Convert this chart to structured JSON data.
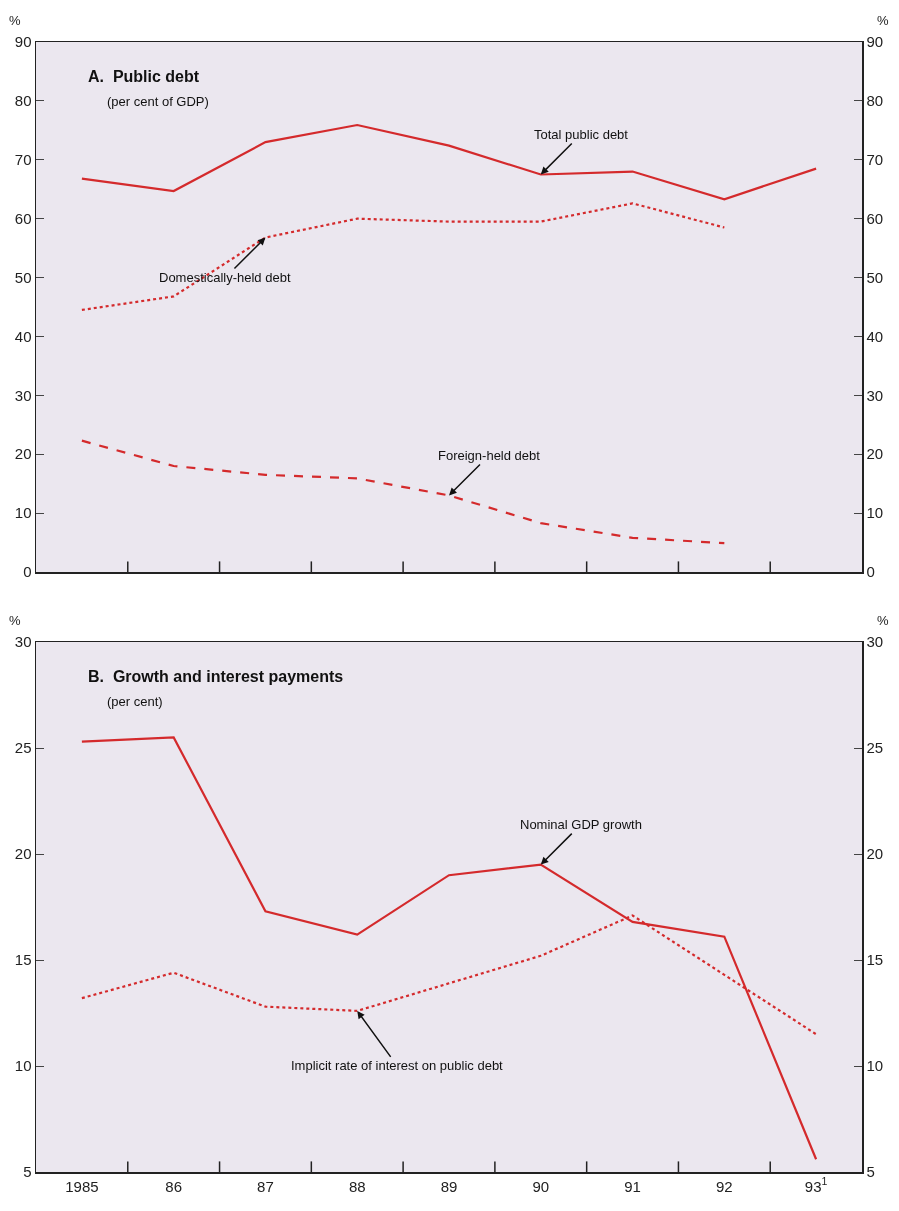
{
  "chart_data": [
    {
      "type": "line",
      "title": "A.  Public debt",
      "subtitle": "(per cent of GDP)",
      "ylabel": "%",
      "y2label": "%",
      "categories": [
        null,
        null,
        null,
        null,
        null,
        null,
        null,
        null,
        null
      ],
      "series": [
        {
          "name": "Total public debt",
          "color": "#d42a2c",
          "line_style": "solid",
          "values": [
            66.8,
            64.7,
            73,
            75.9,
            72.4,
            67.5,
            68,
            63.3,
            68.5
          ]
        },
        {
          "name": "Domestically-held debt",
          "color": "#d42a2c",
          "line_style": "dotted",
          "values": [
            44.5,
            46.8,
            56.8,
            60,
            59.5,
            59.5,
            62.6,
            58.5,
            null
          ]
        },
        {
          "name": "Foreign-held debt",
          "color": "#d42a2c",
          "line_style": "dashed",
          "values": [
            22.3,
            18,
            16.5,
            15.9,
            13,
            8.3,
            5.8,
            4.9,
            null
          ]
        }
      ],
      "ylim": [
        0,
        90
      ],
      "yticks": [
        0,
        10,
        20,
        30,
        40,
        50,
        60,
        70,
        80,
        90
      ],
      "y2lim": [
        0,
        90
      ],
      "y2ticks": [
        0,
        10,
        20,
        30,
        40,
        50,
        60,
        70,
        80,
        90
      ],
      "tick_labels": "y",
      "grid": false,
      "legend": false,
      "marker": "none"
    },
    {
      "type": "line",
      "title": "B.  Growth and interest payments",
      "subtitle": "(per cent)",
      "ylabel": "%",
      "y2label": "%",
      "categories": [
        "1985",
        "86",
        "87",
        "88",
        "89",
        "90",
        "91",
        "92",
        "93$^{1}$"
      ],
      "series": [
        {
          "name": "Nominal GDP growth",
          "color": "#d42a2c",
          "line_style": "solid",
          "values": [
            25.3,
            25.5,
            17.3,
            16.2,
            19,
            19.5,
            16.8,
            16.1,
            5.6
          ]
        },
        {
          "name": "Implicit rate of interest on public debt",
          "color": "#d42a2c",
          "line_style": "dotted",
          "values": [
            13.2,
            14.4,
            12.8,
            12.6,
            13.9,
            15.2,
            17.1,
            14.3,
            11.5
          ]
        }
      ],
      "ylim": [
        5,
        30
      ],
      "yticks": [
        5,
        10,
        15,
        20,
        25,
        30
      ],
      "y2lim": [
        5,
        30
      ],
      "y2ticks": [
        5,
        10,
        15,
        20,
        25,
        30
      ],
      "grid": false,
      "legend": false,
      "marker": "none"
    }
  ]
}
